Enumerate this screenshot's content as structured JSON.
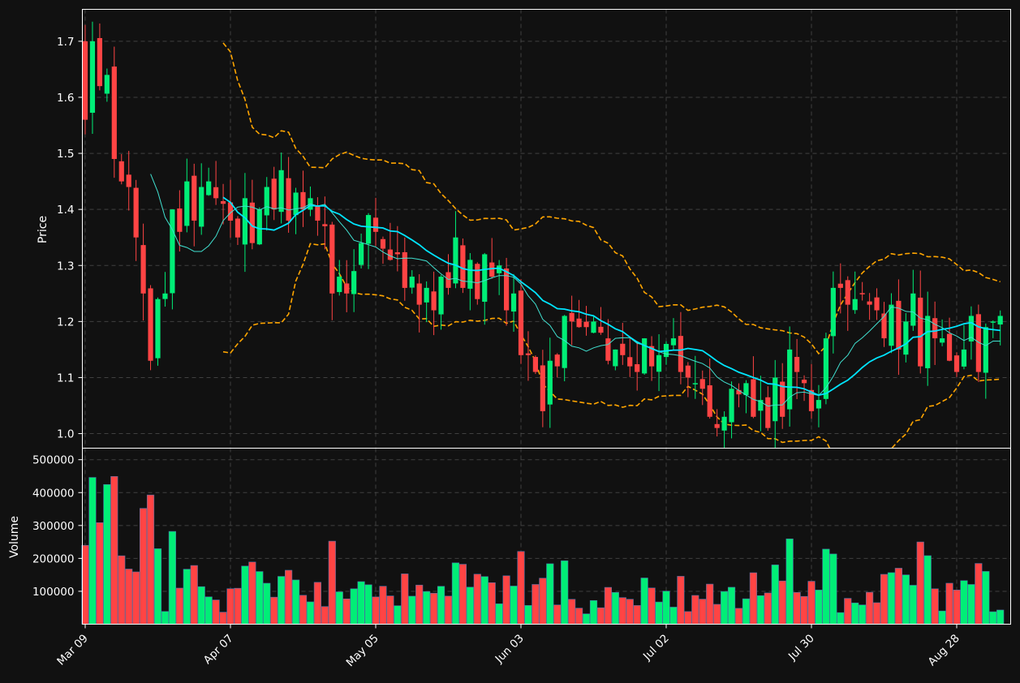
{
  "chart_data": {
    "type": "candlestick",
    "title": "",
    "x_tick_labels": [
      "Mar 09",
      "Apr 07",
      "May 05",
      "Jun 03",
      "Jul 02",
      "Jul 30",
      "Aug 28"
    ],
    "x_tick_index": [
      0,
      20,
      40,
      60,
      80,
      100,
      120
    ],
    "price_panel": {
      "ylabel": "Price",
      "yticks": [
        "1.0",
        "1.1",
        "1.2",
        "1.3",
        "1.4",
        "1.5",
        "1.6",
        "1.7"
      ],
      "ylim": [
        0.974,
        1.757
      ]
    },
    "volume_panel": {
      "ylabel": "Volume",
      "yticks": [
        "100000",
        "200000",
        "300000",
        "400000",
        "500000"
      ],
      "ylim": [
        0,
        535000
      ]
    },
    "colors": {
      "up": "#00ee77",
      "down": "#ff4444",
      "ma_fast": "#00e5ff",
      "ma_slow": "#40e0d0",
      "bands": "#ffa500",
      "background": "#111111",
      "grid": "#555555"
    },
    "overlays": [
      "moving-average-fast",
      "moving-average-slow",
      "upper-band",
      "lower-band"
    ],
    "price_series": [
      1.56,
      1.7,
      1.62,
      1.64,
      1.49,
      1.45,
      1.44,
      1.35,
      1.25,
      1.13,
      1.24,
      1.25,
      1.4,
      1.36,
      1.45,
      1.38,
      1.44,
      1.45,
      1.42,
      1.41,
      1.38,
      1.35,
      1.42,
      1.34,
      1.4,
      1.44,
      1.4,
      1.47,
      1.38,
      1.43,
      1.4,
      1.42,
      1.38,
      1.37,
      1.25,
      1.28,
      1.25,
      1.29,
      1.34,
      1.39,
      1.36,
      1.33,
      1.31,
      1.32,
      1.26,
      1.28,
      1.23,
      1.26,
      1.22,
      1.28,
      1.26,
      1.35,
      1.26,
      1.31,
      1.24,
      1.32,
      1.28,
      1.3,
      1.22,
      1.25,
      1.14,
      1.14,
      1.11,
      1.04,
      1.13,
      1.12,
      1.21,
      1.2,
      1.19,
      1.19,
      1.2,
      1.18,
      1.13,
      1.15,
      1.14,
      1.12,
      1.11,
      1.17,
      1.12,
      1.14,
      1.16,
      1.17,
      1.11,
      1.1,
      1.09,
      1.08,
      1.03,
      1.01,
      1.03,
      1.08,
      1.07,
      1.09,
      1.03,
      1.06,
      1.01,
      1.1,
      1.03,
      1.15,
      1.11,
      1.09,
      1.04,
      1.06,
      1.17,
      1.26,
      1.26,
      1.23,
      1.24,
      1.25,
      1.23,
      1.22,
      1.17,
      1.23,
      1.15,
      1.2,
      1.25,
      1.12,
      1.21,
      1.17,
      1.17,
      1.13,
      1.11,
      1.15,
      1.21,
      1.11,
      1.19,
      1.2,
      1.21
    ]
  }
}
